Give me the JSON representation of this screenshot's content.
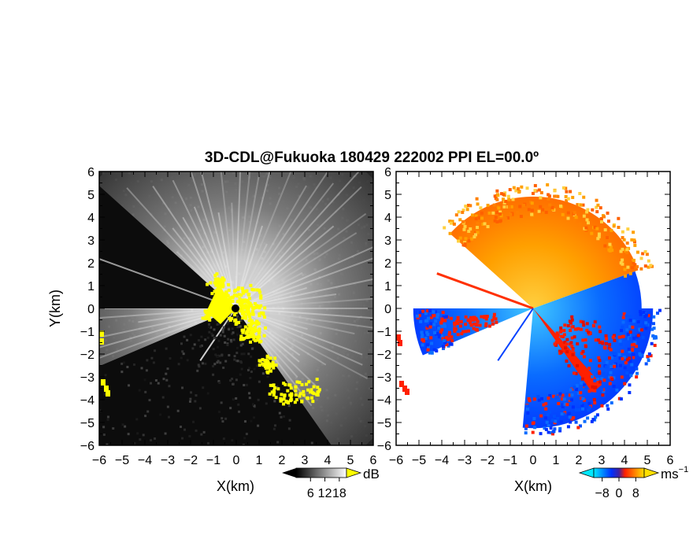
{
  "title": "3D-CDL@Fukuoka 180429 222002 PPI EL=00.0º",
  "chart_data": [
    {
      "type": "heatmap",
      "panel": "reflectivity",
      "xlabel": "X(km)",
      "ylabel": "Y(km)",
      "xlim": [
        -6,
        6
      ],
      "ylim": [
        -6,
        6
      ],
      "xticks": [
        -6,
        -5,
        -4,
        -3,
        -2,
        -1,
        0,
        1,
        2,
        3,
        4,
        5,
        6
      ],
      "yticks": [
        -6,
        -5,
        -4,
        -3,
        -2,
        -1,
        0,
        1,
        2,
        3,
        4,
        5,
        6
      ],
      "grid": false,
      "colorbar": {
        "unit": "dB",
        "ticks": [
          "6",
          "12",
          "18"
        ],
        "range": [
          0,
          21
        ],
        "colors": [
          "#000000",
          "#ffffff"
        ]
      },
      "blocked_sectors_deg": [
        [
          138,
          180
        ],
        [
          203,
          305
        ]
      ],
      "highlight_color": "#ffff00",
      "radar_range_km": 8.5
    },
    {
      "type": "heatmap",
      "panel": "doppler_velocity",
      "xlabel": "X(km)",
      "xlim": [
        -6,
        6
      ],
      "ylim": [
        -6,
        6
      ],
      "xticks": [
        -6,
        -5,
        -4,
        -3,
        -2,
        -1,
        0,
        1,
        2,
        3,
        4,
        5,
        6
      ],
      "yticks": [
        -6,
        -5,
        -4,
        -3,
        -2,
        -1,
        0,
        1,
        2,
        3,
        4,
        5,
        6
      ],
      "grid": false,
      "colorbar": {
        "unit": "ms",
        "unit_exponent": "−1",
        "ticks": [
          "−8",
          "0",
          "8"
        ],
        "range": [
          -12,
          12
        ],
        "colors": [
          "#00e8ff",
          "#0030ff",
          "#ff2000",
          "#ffe000"
        ]
      },
      "velocity_sign": "positive toward north-west, negative toward south-east",
      "radar_range_km": 5
    }
  ]
}
